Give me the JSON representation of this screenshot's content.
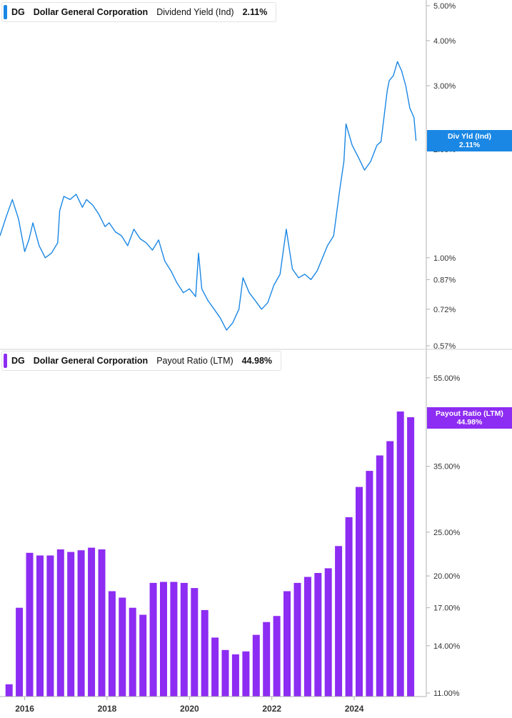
{
  "colors": {
    "yield_line": "#1a87e4",
    "payout_bar": "#8d2cf2",
    "axis": "#b0b0b0"
  },
  "chart_data": [
    {
      "type": "line",
      "title": "",
      "xlabel": "",
      "ylabel": "",
      "scale": "log",
      "ylim": [
        0.57,
        5.0
      ],
      "yticks": [
        "5.00%",
        "4.00%",
        "3.00%",
        "2.00%",
        "1.00%",
        "0.87%",
        "0.72%",
        "0.57%"
      ],
      "legend": {
        "ticker": "DG",
        "company": "Dollar General Corporation",
        "metric": "Dividend Yield (Ind)",
        "value": "2.11%"
      },
      "flag": {
        "label": "Div Yld (Ind)",
        "value": "2.11%"
      },
      "series": [
        {
          "name": "Dividend Yield (Ind)",
          "x": [
            2015.4,
            2015.55,
            2015.7,
            2015.85,
            2016.0,
            2016.1,
            2016.2,
            2016.35,
            2016.5,
            2016.65,
            2016.8,
            2016.85,
            2016.95,
            2017.1,
            2017.25,
            2017.4,
            2017.5,
            2017.65,
            2017.8,
            2017.95,
            2018.05,
            2018.2,
            2018.35,
            2018.5,
            2018.65,
            2018.8,
            2018.95,
            2019.1,
            2019.25,
            2019.4,
            2019.55,
            2019.7,
            2019.85,
            2020.0,
            2020.15,
            2020.22,
            2020.3,
            2020.45,
            2020.6,
            2020.75,
            2020.9,
            2021.05,
            2021.2,
            2021.3,
            2021.45,
            2021.6,
            2021.75,
            2021.9,
            2022.05,
            2022.2,
            2022.35,
            2022.5,
            2022.65,
            2022.8,
            2022.95,
            2023.1,
            2023.2,
            2023.35,
            2023.5,
            2023.65,
            2023.75,
            2023.8,
            2023.95,
            2024.1,
            2024.25,
            2024.4,
            2024.55,
            2024.65,
            2024.8,
            2024.85,
            2024.95,
            2025.05,
            2025.15,
            2025.25,
            2025.35,
            2025.45,
            2025.5
          ],
          "values": [
            1.15,
            1.3,
            1.45,
            1.28,
            1.04,
            1.12,
            1.25,
            1.08,
            1.0,
            1.03,
            1.1,
            1.35,
            1.48,
            1.45,
            1.5,
            1.38,
            1.45,
            1.4,
            1.32,
            1.22,
            1.25,
            1.18,
            1.15,
            1.08,
            1.2,
            1.13,
            1.1,
            1.05,
            1.12,
            0.98,
            0.92,
            0.85,
            0.8,
            0.82,
            0.78,
            1.03,
            0.82,
            0.76,
            0.72,
            0.68,
            0.63,
            0.66,
            0.72,
            0.88,
            0.8,
            0.76,
            0.72,
            0.75,
            0.84,
            0.9,
            1.2,
            0.93,
            0.88,
            0.9,
            0.87,
            0.92,
            0.98,
            1.08,
            1.15,
            1.55,
            1.85,
            2.35,
            2.05,
            1.9,
            1.75,
            1.85,
            2.05,
            2.1,
            2.9,
            3.1,
            3.2,
            3.5,
            3.3,
            3.0,
            2.6,
            2.45,
            2.11
          ]
        }
      ]
    },
    {
      "type": "bar",
      "title": "",
      "xlabel": "",
      "ylabel": "",
      "scale": "log",
      "ylim": [
        10.8,
        60.0
      ],
      "yticks": [
        "55.00%",
        "35.00%",
        "25.00%",
        "20.00%",
        "17.00%",
        "14.00%",
        "11.00%"
      ],
      "legend": {
        "ticker": "DG",
        "company": "Dollar General Corporation",
        "metric": "Payout Ratio (LTM)",
        "value": "44.98%"
      },
      "flag": {
        "label": "Payout Ratio (LTM)",
        "value": "44.98%"
      },
      "x": [
        2015.62,
        2015.87,
        2016.12,
        2016.37,
        2016.62,
        2016.87,
        2017.12,
        2017.37,
        2017.62,
        2017.87,
        2018.12,
        2018.37,
        2018.62,
        2018.87,
        2019.12,
        2019.37,
        2019.62,
        2019.87,
        2020.12,
        2020.37,
        2020.62,
        2020.87,
        2021.12,
        2021.37,
        2021.62,
        2021.87,
        2022.12,
        2022.37,
        2022.62,
        2022.87,
        2023.12,
        2023.37,
        2023.62,
        2023.87,
        2024.12,
        2024.37,
        2024.62,
        2024.87,
        2025.12,
        2025.37
      ],
      "series": [
        {
          "name": "Payout Ratio (LTM)",
          "values": [
            11.5,
            17.0,
            22.5,
            22.2,
            22.2,
            22.9,
            22.6,
            22.8,
            23.1,
            22.9,
            18.5,
            17.9,
            17.0,
            16.4,
            19.3,
            19.4,
            19.4,
            19.3,
            18.8,
            16.8,
            14.6,
            13.7,
            13.4,
            13.6,
            14.8,
            15.8,
            16.3,
            18.5,
            19.3,
            19.9,
            20.3,
            20.8,
            23.3,
            27.0,
            31.5,
            34.2,
            37.0,
            39.8,
            46.3,
            44.98
          ]
        }
      ]
    }
  ],
  "x_axis": {
    "tick_values": [
      2016,
      2018,
      2020,
      2022,
      2024
    ],
    "tick_labels": [
      "2016",
      "2018",
      "2020",
      "2022",
      "2024"
    ]
  }
}
